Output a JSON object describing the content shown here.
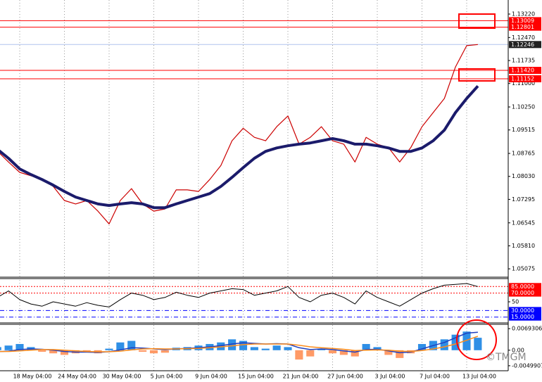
{
  "chart_data": [
    {
      "type": "line",
      "categories": [
        null,
        null,
        "18 May 04:00",
        null,
        null,
        null,
        "24 May 04:00",
        null,
        null,
        null,
        "30 May 04:00",
        null,
        null,
        null,
        "5 Jun 04:00",
        null,
        null,
        null,
        "9 Jun 04:00",
        null,
        null,
        null,
        "15 Jun 04:00",
        null,
        null,
        null,
        "21 Jun 04:00",
        null,
        null,
        null,
        "27 Jun 04:00",
        null,
        null,
        null,
        "3 Jul 04:00",
        null,
        null,
        null,
        "7 Jul 04:00",
        null,
        null,
        null,
        "13 Jul 04:00",
        null
      ],
      "series": [
        {
          "color": "#cc0000",
          "width": 1.2,
          "values": [
            1.0884,
            1.0849,
            1.0816,
            1.0805,
            1.0793,
            1.0771,
            1.0726,
            1.0715,
            1.0726,
            1.0692,
            1.0651,
            1.0726,
            1.0764,
            1.0715,
            1.0692,
            1.0699,
            1.076,
            1.076,
            1.0755,
            1.0793,
            1.0838,
            1.0917,
            1.0957,
            1.0928,
            1.0917,
            1.0962,
            1.0996,
            1.0906,
            1.0928,
            1.0962,
            1.0917,
            1.0906,
            1.0849,
            1.0928,
            1.0906,
            1.0895,
            1.0849,
            1.0895,
            1.0962,
            1.1007,
            1.1052,
            1.1153,
            1.1221,
            1.12246
          ]
        },
        {
          "color": "#1b1b6b",
          "width": 4,
          "values": [
            1.089,
            1.0861,
            1.0827,
            1.0809,
            1.0793,
            1.0775,
            1.0755,
            1.0737,
            1.0726,
            1.0715,
            1.071,
            1.0715,
            1.0719,
            1.0715,
            1.0703,
            1.0703,
            1.0715,
            1.0726,
            1.0737,
            1.0748,
            1.0771,
            1.08,
            1.0831,
            1.0861,
            1.0883,
            1.0894,
            1.0901,
            1.0906,
            1.091,
            1.0917,
            1.0924,
            1.0917,
            1.0906,
            1.0906,
            1.0901,
            1.0894,
            1.0883,
            1.0883,
            1.0894,
            1.0917,
            1.0951,
            1.1007,
            1.1052,
            1.1092
          ]
        }
      ],
      "ylim": [
        1.0483,
        1.1367
      ],
      "yticks": [
        {
          "value": 1.1322,
          "label": "1.13220"
        },
        {
          "value": 1.1247,
          "label": "1.12470"
        },
        1.11735,
        {
          "value": 1.11,
          "label": "1.11000"
        },
        {
          "value": 1.1025,
          "label": "1.10250"
        },
        1.09515,
        1.08765,
        {
          "value": 1.0803,
          "label": "1.08030"
        },
        1.07295,
        1.06545,
        {
          "value": 1.0581,
          "label": "1.05810"
        },
        1.05075
      ],
      "levels": [
        {
          "value": 1.13009,
          "label": "1.13009",
          "color": "#ff0000"
        },
        {
          "value": 1.12801,
          "label": "1.12801",
          "color": "#ff0000"
        },
        {
          "value": 1.12246,
          "label": "1.12246",
          "color": "#b0c4ee"
        },
        {
          "value": 1.1142,
          "label": "1.11420",
          "color": "#ff0000"
        },
        {
          "value": 1.11152,
          "label": "1.11152",
          "color": "#ff0000"
        }
      ],
      "grid": true
    },
    {
      "type": "line",
      "series": [
        {
          "color": "#000000",
          "width": 1,
          "values": [
            60,
            75,
            55,
            45,
            40,
            50,
            45,
            40,
            48,
            42,
            38,
            55,
            70,
            65,
            55,
            60,
            72,
            65,
            60,
            70,
            75,
            80,
            78,
            65,
            70,
            75,
            85,
            60,
            50,
            65,
            70,
            60,
            45,
            75,
            60,
            50,
            40,
            55,
            70,
            80,
            88,
            90,
            92,
            85
          ]
        }
      ],
      "ylim": [
        0,
        100
      ],
      "yticks": [
        {
          "value": 85,
          "label": "85.0000",
          "color": "#ff0000"
        },
        {
          "value": 70,
          "label": "70.0000",
          "color": "#ff0000"
        },
        50,
        {
          "value": 30,
          "label": "30.0000",
          "color": "#0000ff"
        },
        {
          "value": 15,
          "label": "15.0000",
          "color": "#0000ff"
        }
      ]
    },
    {
      "type": "bar",
      "values": [
        0.001,
        0.0015,
        0.002,
        0.001,
        -0.0005,
        -0.001,
        -0.0015,
        -0.001,
        -0.0005,
        -0.001,
        0.0005,
        0.0025,
        0.003,
        -0.0005,
        -0.001,
        -0.0008,
        0.0008,
        0.001,
        0.0015,
        0.002,
        0.0025,
        0.0035,
        0.003,
        0.001,
        0.0005,
        0.0015,
        0.001,
        -0.003,
        -0.002,
        0.0005,
        -0.001,
        -0.0015,
        -0.002,
        0.002,
        0.001,
        -0.0015,
        -0.0025,
        -0.001,
        0.002,
        0.003,
        0.0035,
        0.005,
        0.006,
        0.004
      ],
      "color": "#2f8fe6",
      "negative_color": "#ff9a66",
      "series": [
        {
          "color": "#1f3fbf",
          "width": 1.5,
          "values": [
            -0.0005,
            -0.0003,
            0.0002,
            0.0004,
            0.0003,
            0.0,
            -0.0004,
            -0.0006,
            -0.0006,
            -0.0007,
            -0.0005,
            0.0001,
            0.0008,
            0.0007,
            0.0004,
            0.0002,
            0.0004,
            0.0006,
            0.0008,
            0.0011,
            0.0015,
            0.002,
            0.0024,
            0.0022,
            0.002,
            0.0021,
            0.002,
            0.0008,
            0.0002,
            0.0004,
            0.0002,
            -0.0002,
            -0.0006,
            0.0002,
            0.0003,
            -0.0002,
            -0.0008,
            -0.0006,
            0.0004,
            0.0015,
            0.0025,
            0.004,
            0.0055,
            0.0058
          ]
        },
        {
          "color": "#ff8c1a",
          "width": 1.5,
          "values": [
            -0.0004,
            -0.0004,
            -0.0002,
            0.0,
            0.0002,
            0.0002,
            0.0,
            -0.0002,
            -0.0004,
            -0.0005,
            -0.0005,
            -0.0003,
            0.0001,
            0.0004,
            0.0005,
            0.0004,
            0.0004,
            0.0005,
            0.0006,
            0.0008,
            0.0011,
            0.0014,
            0.0018,
            0.002,
            0.002,
            0.002,
            0.002,
            0.0016,
            0.0011,
            0.0008,
            0.0006,
            0.0003,
            -0.0001,
            0.0,
            0.0001,
            0.0,
            -0.0003,
            -0.0004,
            -0.0001,
            0.0004,
            0.0011,
            0.002,
            0.0032,
            0.0045
          ]
        }
      ],
      "ylim": [
        -0.0066,
        0.0081
      ],
      "yticks": [
        0.0069306,
        {
          "value": 0,
          "label": "0.00"
        },
        -0.0049907
      ]
    }
  ],
  "watermark": "©TMGM"
}
